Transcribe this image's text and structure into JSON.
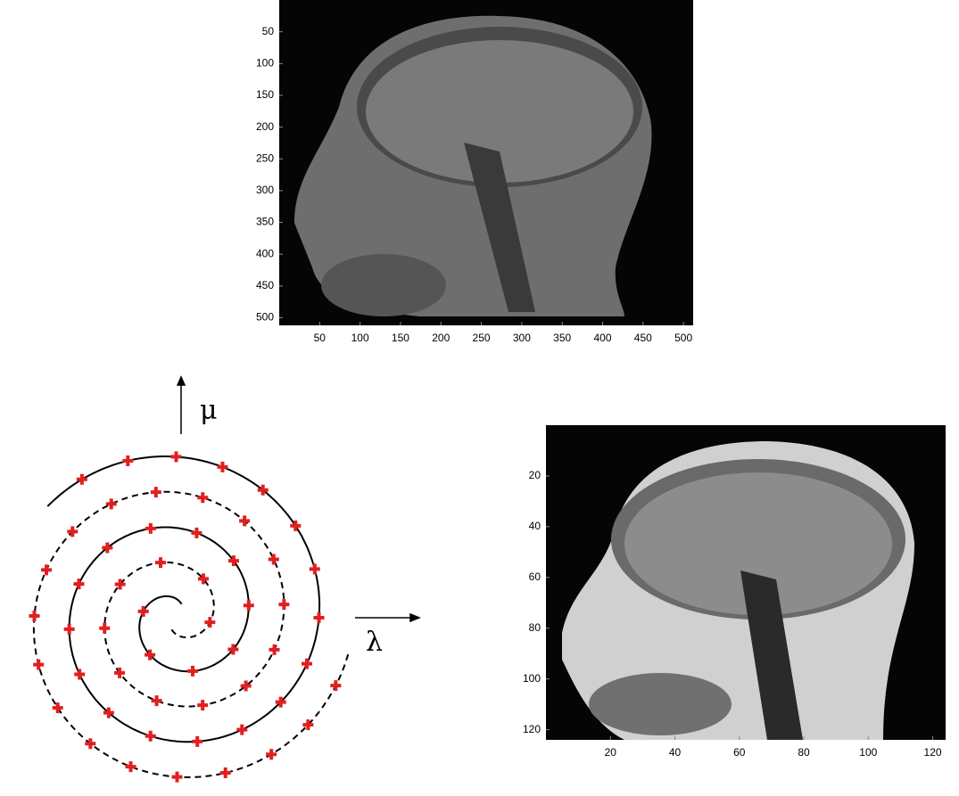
{
  "images": [
    {
      "xticks": [
        50,
        100,
        150,
        200,
        250,
        300,
        350,
        400,
        450,
        500
      ],
      "yticks": [
        50,
        100,
        150,
        200,
        250,
        300,
        350,
        400,
        450,
        500
      ]
    },
    {
      "xticks": [
        20,
        40,
        60,
        80,
        100,
        120
      ],
      "yticks": [
        20,
        40,
        60,
        80,
        100,
        120
      ]
    }
  ],
  "diagram": {
    "mu": "μ",
    "lambda": "λ"
  }
}
